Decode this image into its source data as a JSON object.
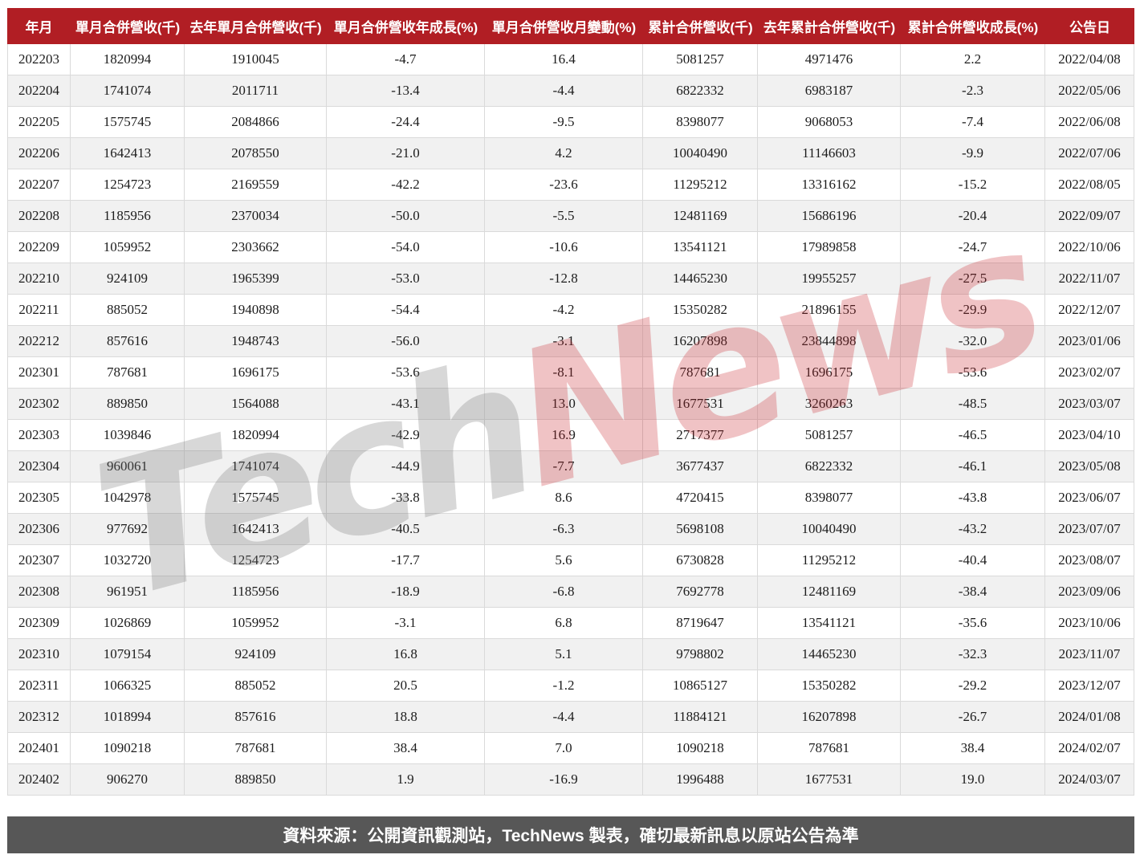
{
  "table": {
    "columns": [
      "年月",
      "單月合併營收(千)",
      "去年單月合併營收(千)",
      "單月合併營收年成長(%)",
      "單月合併營收月變動(%)",
      "累計合併營收(千)",
      "去年累計合併營收(千)",
      "累計合併營收成長(%)",
      "公告日"
    ],
    "rows": [
      [
        "202203",
        "1820994",
        "1910045",
        "-4.7",
        "16.4",
        "5081257",
        "4971476",
        "2.2",
        "2022/04/08"
      ],
      [
        "202204",
        "1741074",
        "2011711",
        "-13.4",
        "-4.4",
        "6822332",
        "6983187",
        "-2.3",
        "2022/05/06"
      ],
      [
        "202205",
        "1575745",
        "2084866",
        "-24.4",
        "-9.5",
        "8398077",
        "9068053",
        "-7.4",
        "2022/06/08"
      ],
      [
        "202206",
        "1642413",
        "2078550",
        "-21.0",
        "4.2",
        "10040490",
        "11146603",
        "-9.9",
        "2022/07/06"
      ],
      [
        "202207",
        "1254723",
        "2169559",
        "-42.2",
        "-23.6",
        "11295212",
        "13316162",
        "-15.2",
        "2022/08/05"
      ],
      [
        "202208",
        "1185956",
        "2370034",
        "-50.0",
        "-5.5",
        "12481169",
        "15686196",
        "-20.4",
        "2022/09/07"
      ],
      [
        "202209",
        "1059952",
        "2303662",
        "-54.0",
        "-10.6",
        "13541121",
        "17989858",
        "-24.7",
        "2022/10/06"
      ],
      [
        "202210",
        "924109",
        "1965399",
        "-53.0",
        "-12.8",
        "14465230",
        "19955257",
        "-27.5",
        "2022/11/07"
      ],
      [
        "202211",
        "885052",
        "1940898",
        "-54.4",
        "-4.2",
        "15350282",
        "21896155",
        "-29.9",
        "2022/12/07"
      ],
      [
        "202212",
        "857616",
        "1948743",
        "-56.0",
        "-3.1",
        "16207898",
        "23844898",
        "-32.0",
        "2023/01/06"
      ],
      [
        "202301",
        "787681",
        "1696175",
        "-53.6",
        "-8.1",
        "787681",
        "1696175",
        "-53.6",
        "2023/02/07"
      ],
      [
        "202302",
        "889850",
        "1564088",
        "-43.1",
        "13.0",
        "1677531",
        "3260263",
        "-48.5",
        "2023/03/07"
      ],
      [
        "202303",
        "1039846",
        "1820994",
        "-42.9",
        "16.9",
        "2717377",
        "5081257",
        "-46.5",
        "2023/04/10"
      ],
      [
        "202304",
        "960061",
        "1741074",
        "-44.9",
        "-7.7",
        "3677437",
        "6822332",
        "-46.1",
        "2023/05/08"
      ],
      [
        "202305",
        "1042978",
        "1575745",
        "-33.8",
        "8.6",
        "4720415",
        "8398077",
        "-43.8",
        "2023/06/07"
      ],
      [
        "202306",
        "977692",
        "1642413",
        "-40.5",
        "-6.3",
        "5698108",
        "10040490",
        "-43.2",
        "2023/07/07"
      ],
      [
        "202307",
        "1032720",
        "1254723",
        "-17.7",
        "5.6",
        "6730828",
        "11295212",
        "-40.4",
        "2023/08/07"
      ],
      [
        "202308",
        "961951",
        "1185956",
        "-18.9",
        "-6.8",
        "7692778",
        "12481169",
        "-38.4",
        "2023/09/06"
      ],
      [
        "202309",
        "1026869",
        "1059952",
        "-3.1",
        "6.8",
        "8719647",
        "13541121",
        "-35.6",
        "2023/10/06"
      ],
      [
        "202310",
        "1079154",
        "924109",
        "16.8",
        "5.1",
        "9798802",
        "14465230",
        "-32.3",
        "2023/11/07"
      ],
      [
        "202311",
        "1066325",
        "885052",
        "20.5",
        "-1.2",
        "10865127",
        "15350282",
        "-29.2",
        "2023/12/07"
      ],
      [
        "202312",
        "1018994",
        "857616",
        "18.8",
        "-4.4",
        "11884121",
        "16207898",
        "-26.7",
        "2024/01/08"
      ],
      [
        "202401",
        "1090218",
        "787681",
        "38.4",
        "7.0",
        "1090218",
        "787681",
        "38.4",
        "2024/02/07"
      ],
      [
        "202402",
        "906270",
        "889850",
        "1.9",
        "-16.9",
        "1996488",
        "1677531",
        "19.0",
        "2024/03/07"
      ]
    ]
  },
  "watermark": {
    "part1": "Tech",
    "part2": "News"
  },
  "footer": {
    "text": "資料來源：公開資訊觀測站，TechNews 製表，確切最新訊息以原站公告為準"
  },
  "colors": {
    "header_bg": "#b11e24",
    "row_alt_bg": "#f1f1f1",
    "border": "#dadada",
    "footer_bg": "#575757",
    "watermark_gray": "#737373",
    "watermark_red": "#c6202a"
  }
}
